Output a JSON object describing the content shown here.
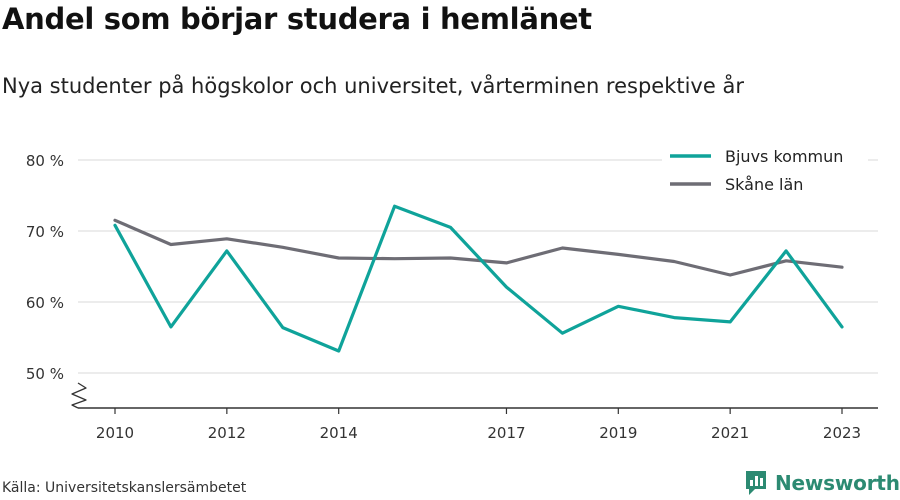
{
  "title": "Andel som börjar studera i hemlänet",
  "subtitle": "Nya studenter på högskolor och universitet, vårterminen respektive år",
  "source": "Källa: Universitetskanslersämbetet",
  "brand": {
    "name": "Newsworthy",
    "icon": "bar-chart-logo-icon",
    "color": "#2c8a72"
  },
  "chart_data": {
    "type": "line",
    "title": "Andel som börjar studera i hemlänet",
    "subtitle": "Nya studenter på högskolor och universitet, vårterminen respektive år",
    "xlabel": "",
    "ylabel": "",
    "x": [
      2010,
      2011,
      2012,
      2013,
      2014,
      2015,
      2016,
      2017,
      2018,
      2019,
      2020,
      2021,
      2022,
      2023
    ],
    "x_tick_labels": [
      "2010",
      "2012",
      "2014",
      "2017",
      "2019",
      "2021",
      "2023"
    ],
    "y_tick_labels": [
      "80 %",
      "70 %",
      "60 %",
      "50 %"
    ],
    "ylim": [
      50,
      80
    ],
    "y_axis_break": true,
    "grid": true,
    "legend": "top-right",
    "series": [
      {
        "name": "Bjuvs kommun",
        "color": "#0fa39a",
        "values": [
          70.8,
          56.5,
          67.2,
          56.4,
          53.1,
          73.5,
          70.5,
          62.1,
          55.6,
          59.4,
          57.8,
          57.2,
          67.2,
          56.5
        ]
      },
      {
        "name": "Skåne län",
        "color": "#6e6d75",
        "values": [
          71.5,
          68.1,
          68.9,
          67.7,
          66.2,
          66.1,
          66.2,
          65.5,
          67.6,
          66.7,
          65.7,
          63.8,
          65.8,
          64.9
        ]
      }
    ]
  }
}
